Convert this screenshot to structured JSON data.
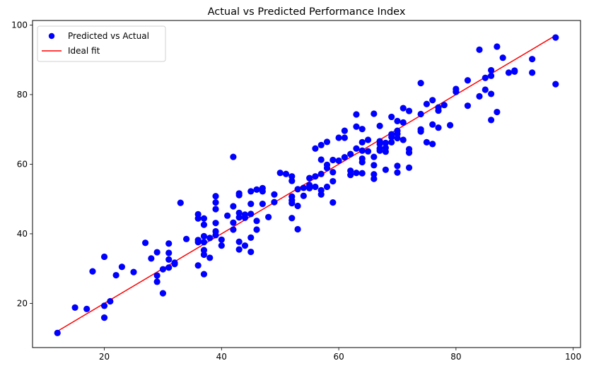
{
  "chart_data": {
    "type": "scatter",
    "title": "Actual vs Predicted Performance Index",
    "xlabel": "",
    "ylabel": "",
    "xlim": [
      7.75,
      101.25
    ],
    "ylim": [
      7.3,
      101.3
    ],
    "x_ticks": [
      20,
      40,
      60,
      80,
      100
    ],
    "y_ticks": [
      20,
      40,
      60,
      80,
      100
    ],
    "grid": false,
    "legend_position": "upper-left",
    "colors": {
      "scatter": "#0000ff",
      "line": "#ff0000"
    },
    "series": [
      {
        "name": "Predicted vs Actual",
        "type": "scatter",
        "points": [
          [
            12,
            11.5
          ],
          [
            15,
            18.8
          ],
          [
            17,
            18.4
          ],
          [
            18,
            29.2
          ],
          [
            20,
            33.4
          ],
          [
            20,
            19.3
          ],
          [
            20,
            15.9
          ],
          [
            21,
            20.6
          ],
          [
            22,
            28.1
          ],
          [
            23,
            30.5
          ],
          [
            25,
            29
          ],
          [
            27,
            37.4
          ],
          [
            28,
            32.9
          ],
          [
            29,
            34.7
          ],
          [
            29,
            28
          ],
          [
            29,
            26.2
          ],
          [
            30,
            29.8
          ],
          [
            30,
            22.9
          ],
          [
            31,
            37.2
          ],
          [
            31,
            34.5
          ],
          [
            31,
            32.6
          ],
          [
            31,
            30.3
          ],
          [
            32,
            31.7
          ],
          [
            32,
            31.3
          ],
          [
            33,
            48.9
          ],
          [
            34,
            38.5
          ],
          [
            36,
            45.6
          ],
          [
            36,
            44.4
          ],
          [
            36,
            38.2
          ],
          [
            36,
            37.6
          ],
          [
            36,
            30.9
          ],
          [
            37,
            44.4
          ],
          [
            37,
            42.6
          ],
          [
            37,
            39.3
          ],
          [
            37,
            37.6
          ],
          [
            37,
            35.3
          ],
          [
            37,
            34
          ],
          [
            37,
            28.4
          ],
          [
            38,
            38.8
          ],
          [
            38,
            33.1
          ],
          [
            39,
            50.8
          ],
          [
            39,
            49
          ],
          [
            39,
            47.1
          ],
          [
            39,
            43.1
          ],
          [
            39,
            40.7
          ],
          [
            39,
            39.6
          ],
          [
            40,
            36.6
          ],
          [
            40,
            38.3
          ],
          [
            41,
            45.2
          ],
          [
            42,
            62.1
          ],
          [
            42,
            47.9
          ],
          [
            42,
            43.2
          ],
          [
            42,
            41.2
          ],
          [
            43,
            51.6
          ],
          [
            43,
            51.1
          ],
          [
            43,
            46
          ],
          [
            43,
            44.7
          ],
          [
            43,
            37.7
          ],
          [
            43,
            35.5
          ],
          [
            44,
            45.5
          ],
          [
            44,
            44.6
          ],
          [
            44,
            36.6
          ],
          [
            45,
            52.2
          ],
          [
            45,
            48.6
          ],
          [
            45,
            45.7
          ],
          [
            45,
            38.9
          ],
          [
            45,
            34.8
          ],
          [
            46,
            52.7
          ],
          [
            46,
            43.7
          ],
          [
            46,
            41.2
          ],
          [
            47,
            53.1
          ],
          [
            47,
            52.2
          ],
          [
            47,
            48.6
          ],
          [
            48,
            44.8
          ],
          [
            49,
            51.3
          ],
          [
            49,
            49.1
          ],
          [
            50,
            57.5
          ],
          [
            51,
            57.2
          ],
          [
            52,
            56.5
          ],
          [
            52,
            55.2
          ],
          [
            52,
            50.7
          ],
          [
            52,
            49.6
          ],
          [
            52,
            48.8
          ],
          [
            52,
            44.5
          ],
          [
            53,
            52.8
          ],
          [
            53,
            48
          ],
          [
            53,
            41.3
          ],
          [
            54,
            53.2
          ],
          [
            54,
            50.9
          ],
          [
            55,
            56
          ],
          [
            55,
            54
          ],
          [
            55,
            53.1
          ],
          [
            56,
            56.5
          ],
          [
            56,
            53.5
          ],
          [
            56,
            64.5
          ],
          [
            57,
            65.5
          ],
          [
            57,
            61.3
          ],
          [
            57,
            57.2
          ],
          [
            57,
            52.5
          ],
          [
            57,
            51.3
          ],
          [
            58,
            66.4
          ],
          [
            58,
            59.8
          ],
          [
            58,
            58.9
          ],
          [
            58,
            53.5
          ],
          [
            59,
            61.2
          ],
          [
            59,
            57.7
          ],
          [
            59,
            55.1
          ],
          [
            59,
            49
          ],
          [
            60,
            67.6
          ],
          [
            60,
            61
          ],
          [
            61,
            69.6
          ],
          [
            61,
            67.6
          ],
          [
            61,
            62
          ],
          [
            62,
            62.9
          ],
          [
            62,
            58.1
          ],
          [
            62,
            56.9
          ],
          [
            63,
            74.3
          ],
          [
            63,
            70.8
          ],
          [
            63,
            64.5
          ],
          [
            63,
            57.5
          ],
          [
            64,
            70.1
          ],
          [
            64,
            66.3
          ],
          [
            64,
            63.9
          ],
          [
            64,
            61.6
          ],
          [
            64,
            60.6
          ],
          [
            64,
            57.4
          ],
          [
            65,
            67
          ],
          [
            65,
            63.7
          ],
          [
            66,
            74.5
          ],
          [
            66,
            62.1
          ],
          [
            66,
            59.7
          ],
          [
            66,
            57.1
          ],
          [
            66,
            55.8
          ],
          [
            67,
            71
          ],
          [
            67,
            66.6
          ],
          [
            67,
            65.8
          ],
          [
            67,
            64.5
          ],
          [
            67,
            63.9
          ],
          [
            68,
            66.1
          ],
          [
            68,
            64.7
          ],
          [
            68,
            63.6
          ],
          [
            68,
            58.4
          ],
          [
            69,
            73.6
          ],
          [
            69,
            67.8
          ],
          [
            69,
            66.3
          ],
          [
            69,
            68.6
          ],
          [
            70,
            72.4
          ],
          [
            70,
            69.6
          ],
          [
            70,
            68.7
          ],
          [
            70,
            67.5
          ],
          [
            70,
            59.5
          ],
          [
            70,
            57.6
          ],
          [
            71,
            76.1
          ],
          [
            71,
            72
          ],
          [
            71,
            67
          ],
          [
            72,
            75.3
          ],
          [
            72,
            64.3
          ],
          [
            72,
            63.3
          ],
          [
            72,
            59
          ],
          [
            74,
            83.3
          ],
          [
            74,
            74.4
          ],
          [
            74,
            70
          ],
          [
            74,
            69.4
          ],
          [
            75,
            77.3
          ],
          [
            75,
            66.3
          ],
          [
            76,
            78.4
          ],
          [
            76,
            71.4
          ],
          [
            76,
            65.8
          ],
          [
            77,
            76.3
          ],
          [
            77,
            75.4
          ],
          [
            77,
            70.5
          ],
          [
            78,
            77
          ],
          [
            79,
            71.2
          ],
          [
            80,
            81.6
          ],
          [
            80,
            80.8
          ],
          [
            82,
            84.1
          ],
          [
            82,
            76.8
          ],
          [
            84,
            92.9
          ],
          [
            84,
            79.5
          ],
          [
            85,
            84.8
          ],
          [
            85,
            81.4
          ],
          [
            86,
            87
          ],
          [
            86,
            85.4
          ],
          [
            86,
            80.2
          ],
          [
            86,
            72.7
          ],
          [
            87,
            93.8
          ],
          [
            87,
            75
          ],
          [
            88,
            90.6
          ],
          [
            89,
            86.3
          ],
          [
            90,
            86.9
          ],
          [
            90,
            86.6
          ],
          [
            93,
            90.2
          ],
          [
            93,
            86.3
          ],
          [
            97,
            96.4
          ],
          [
            97,
            83
          ]
        ]
      },
      {
        "name": "Ideal fit",
        "type": "line",
        "points": [
          [
            12,
            12
          ],
          [
            97,
            97
          ]
        ]
      }
    ]
  }
}
